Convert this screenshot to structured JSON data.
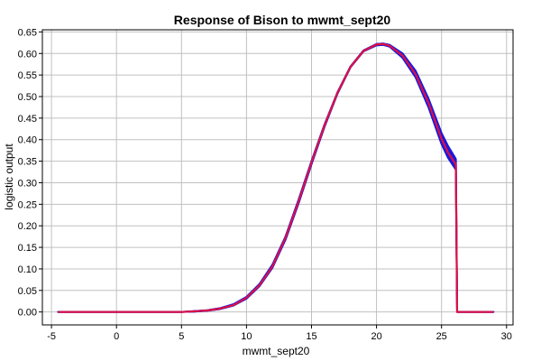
{
  "chart_data": {
    "type": "line",
    "title": "Response of Bison to mwmt_sept20",
    "xlabel": "mwmt_sept20",
    "ylabel": "logistic output",
    "xlim": [
      -5.7,
      30.5
    ],
    "ylim": [
      -0.03,
      0.655
    ],
    "xticks": [
      -5,
      0,
      5,
      10,
      15,
      20,
      25,
      30
    ],
    "yticks": [
      0.0,
      0.05,
      0.1,
      0.15,
      0.2,
      0.25,
      0.3,
      0.35,
      0.4,
      0.45,
      0.5,
      0.55,
      0.6,
      0.65
    ],
    "grid": true,
    "legend": "none",
    "colors": {
      "mean": "#dd1144",
      "band": "#1a1adc",
      "grid": "#c0c0c0",
      "frame": "#000000"
    },
    "series": [
      {
        "role": "upper",
        "x": [
          -4.5,
          5,
          6,
          7,
          8,
          9,
          10,
          11,
          12,
          13,
          14,
          15,
          16,
          17,
          18,
          19,
          20,
          20.5,
          21,
          22,
          23,
          24,
          25,
          25.5,
          26,
          26.1,
          26.2,
          29
        ],
        "y": [
          0.0,
          0.0,
          0.002,
          0.004,
          0.009,
          0.018,
          0.035,
          0.065,
          0.11,
          0.175,
          0.26,
          0.35,
          0.435,
          0.51,
          0.57,
          0.607,
          0.622,
          0.623,
          0.62,
          0.6,
          0.56,
          0.495,
          0.415,
          0.385,
          0.36,
          0.355,
          0.0,
          0.0
        ]
      },
      {
        "role": "lower",
        "x": [
          -4.5,
          5,
          6,
          7,
          8,
          9,
          10,
          11,
          12,
          13,
          14,
          15,
          16,
          17,
          18,
          19,
          20,
          20.5,
          21,
          22,
          23,
          24,
          25,
          25.5,
          26,
          26.1,
          26.2,
          29
        ],
        "y": [
          0.0,
          0.0,
          0.001,
          0.003,
          0.007,
          0.015,
          0.031,
          0.06,
          0.103,
          0.168,
          0.252,
          0.343,
          0.43,
          0.507,
          0.568,
          0.605,
          0.619,
          0.62,
          0.616,
          0.59,
          0.545,
          0.475,
          0.39,
          0.358,
          0.335,
          0.33,
          0.0,
          0.0
        ]
      },
      {
        "role": "mean",
        "x": [
          -4.5,
          5,
          6,
          7,
          8,
          9,
          10,
          11,
          12,
          13,
          14,
          15,
          16,
          17,
          18,
          19,
          20,
          20.5,
          21,
          22,
          23,
          24,
          25,
          25.5,
          26,
          26.1,
          26.2,
          29
        ],
        "y": [
          0.0,
          0.0,
          0.0015,
          0.0035,
          0.008,
          0.016,
          0.033,
          0.062,
          0.106,
          0.172,
          0.256,
          0.347,
          0.433,
          0.509,
          0.569,
          0.606,
          0.621,
          0.622,
          0.618,
          0.595,
          0.552,
          0.485,
          0.402,
          0.37,
          0.347,
          0.342,
          0.0,
          0.0
        ]
      }
    ]
  }
}
